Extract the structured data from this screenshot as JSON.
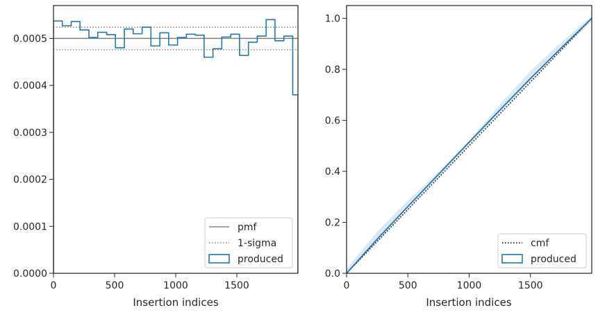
{
  "chart_data": [
    {
      "type": "line",
      "title": "",
      "xlabel": "Insertion indices",
      "ylabel": "",
      "xlim": [
        0,
        2000
      ],
      "ylim": [
        0,
        0.00057
      ],
      "xticks": [
        0,
        500,
        1000,
        1500
      ],
      "xtick_labels": [
        "0",
        "500",
        "1000",
        "1500"
      ],
      "yticks": [
        0,
        0.0001,
        0.0002,
        0.0003,
        0.0004,
        0.0005
      ],
      "ytick_labels": [
        "0.0000",
        "0.0001",
        "0.0002",
        "0.0003",
        "0.0004",
        "0.0005"
      ],
      "legend_position": "lower right",
      "grid": false,
      "colors": {
        "pmf": "#808080",
        "sigma": "#808080",
        "produced": "#1f77b4"
      },
      "series": [
        {
          "name": "pmf",
          "style": "solid",
          "x": [
            0,
            2000
          ],
          "y": [
            0.0005,
            0.0005
          ]
        },
        {
          "name": "1-sigma",
          "style": "dotted",
          "x": [
            0,
            2000
          ],
          "y": [
            0.000524,
            0.000524
          ]
        },
        {
          "name": "1-sigma",
          "style": "dotted",
          "x": [
            0,
            2000
          ],
          "y": [
            0.000476,
            0.000476
          ]
        },
        {
          "name": "produced",
          "style": "step-histogram",
          "bin_edges": [
            0,
            72,
            145,
            217,
            290,
            362,
            435,
            507,
            580,
            652,
            725,
            797,
            870,
            942,
            1015,
            1087,
            1160,
            1232,
            1305,
            1377,
            1450,
            1522,
            1595,
            1667,
            1740,
            1812,
            1885,
            1957,
            2000
          ],
          "values": [
            0.000537,
            0.000527,
            0.000536,
            0.000518,
            0.000502,
            0.000513,
            0.000508,
            0.00048,
            0.00052,
            0.00051,
            0.000524,
            0.000484,
            0.000512,
            0.000486,
            0.000502,
            0.000509,
            0.000507,
            0.00046,
            0.000478,
            0.000503,
            0.000509,
            0.000464,
            0.000492,
            0.000505,
            0.00054,
            0.000495,
            0.000505,
            0.00038
          ]
        }
      ]
    },
    {
      "type": "line",
      "title": "",
      "xlabel": "Insertion indices",
      "ylabel": "",
      "xlim": [
        0,
        2000
      ],
      "ylim": [
        0,
        1.05
      ],
      "xticks": [
        0,
        500,
        1000,
        1500
      ],
      "xtick_labels": [
        "0",
        "500",
        "1000",
        "1500"
      ],
      "yticks": [
        0,
        0.2,
        0.4,
        0.6,
        0.8,
        1.0
      ],
      "ytick_labels": [
        "0.0",
        "0.2",
        "0.4",
        "0.6",
        "0.8",
        "1.0"
      ],
      "legend_position": "lower right",
      "grid": false,
      "colors": {
        "cmf": "#000000",
        "produced": "#1f77b4",
        "band": "#b8cde0"
      },
      "series": [
        {
          "name": "cmf",
          "style": "dotted",
          "x": [
            0,
            2000
          ],
          "y": [
            0,
            1.0
          ]
        },
        {
          "name": "produced",
          "style": "line",
          "x": [
            0,
            250,
            500,
            750,
            1000,
            1250,
            1500,
            1750,
            2000
          ],
          "y": [
            0,
            0.134,
            0.262,
            0.388,
            0.514,
            0.64,
            0.764,
            0.883,
            1.0
          ]
        }
      ]
    }
  ],
  "legends": [
    {
      "items": [
        {
          "label": "pmf",
          "kind": "solid"
        },
        {
          "label": "1-sigma",
          "kind": "dotted"
        },
        {
          "label": "produced",
          "kind": "box"
        }
      ]
    },
    {
      "items": [
        {
          "label": "cmf",
          "kind": "dotted"
        },
        {
          "label": "produced",
          "kind": "box"
        }
      ]
    }
  ]
}
